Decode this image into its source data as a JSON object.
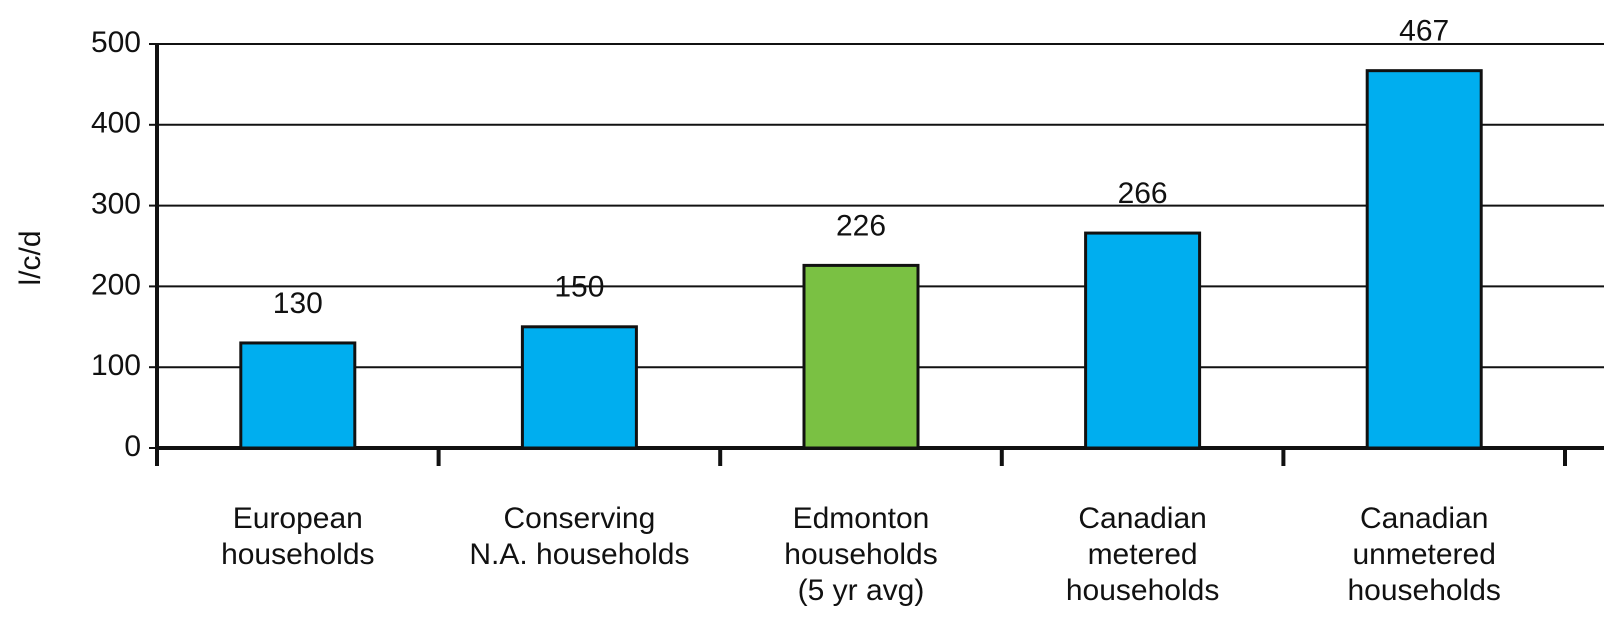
{
  "chart_data": {
    "type": "bar",
    "y_label": "l/c/d",
    "categories": [
      [
        "European",
        "households"
      ],
      [
        "Conserving",
        "N.A. households"
      ],
      [
        "Edmonton",
        "households",
        "(5 yr avg)"
      ],
      [
        "Canadian",
        "metered",
        "households"
      ],
      [
        "Canadian",
        "unmetered",
        "households"
      ]
    ],
    "values": [
      130,
      150,
      226,
      266,
      467
    ],
    "colors": [
      "#00aeef",
      "#00aeef",
      "#7ac143",
      "#00aeef",
      "#00aeef"
    ],
    "ylim": [
      0,
      500
    ],
    "yticks": [
      0,
      100,
      200,
      300,
      400,
      500
    ],
    "grid": true
  }
}
